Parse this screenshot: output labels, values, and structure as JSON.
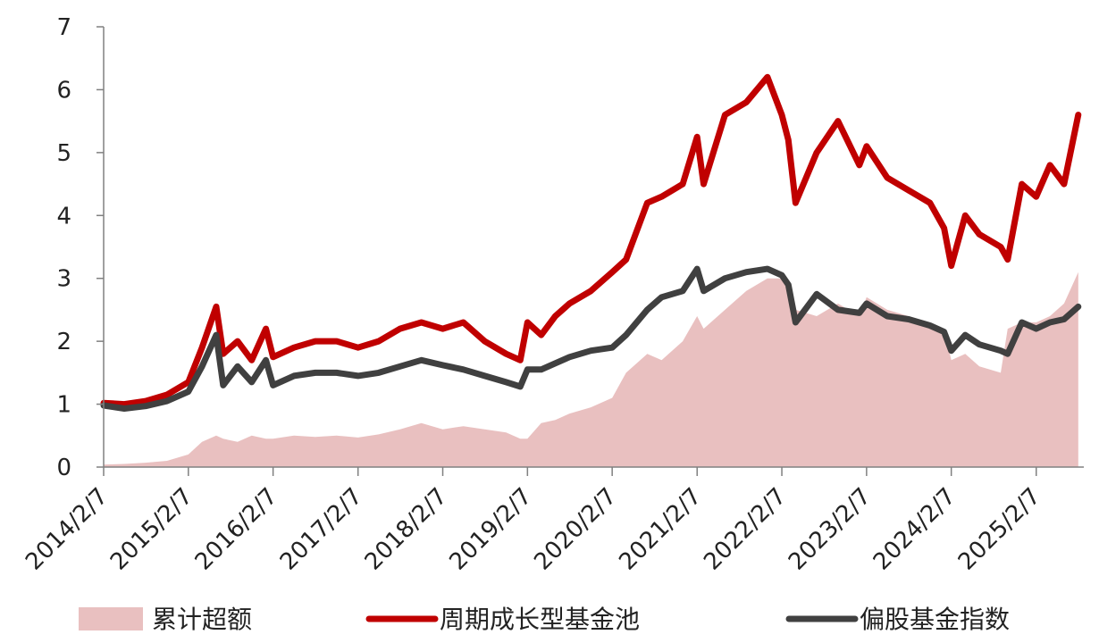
{
  "chart_data": {
    "type": "line",
    "title": "",
    "xlabel": "",
    "ylabel": "",
    "ylim": [
      0,
      7
    ],
    "yticks": [
      "0",
      "1",
      "2",
      "3",
      "4",
      "5",
      "6",
      "7"
    ],
    "xticks": [
      "2014/2/7",
      "2015/2/7",
      "2016/2/7",
      "2017/2/7",
      "2018/2/7",
      "2019/2/7",
      "2020/2/7",
      "2021/2/7",
      "2022/2/7",
      "2023/2/7",
      "2024/2/7",
      "2025/2/7"
    ],
    "x": [
      "2014-02",
      "2014-05",
      "2014-08",
      "2014-11",
      "2015-02",
      "2015-04",
      "2015-06",
      "2015-07",
      "2015-09",
      "2015-11",
      "2016-01",
      "2016-02",
      "2016-05",
      "2016-08",
      "2016-11",
      "2017-02",
      "2017-05",
      "2017-08",
      "2017-11",
      "2018-02",
      "2018-05",
      "2018-08",
      "2018-11",
      "2019-01",
      "2019-02",
      "2019-04",
      "2019-06",
      "2019-08",
      "2019-11",
      "2020-02",
      "2020-04",
      "2020-07",
      "2020-09",
      "2020-12",
      "2021-02",
      "2021-03",
      "2021-06",
      "2021-09",
      "2021-12",
      "2022-02",
      "2022-03",
      "2022-04",
      "2022-07",
      "2022-10",
      "2023-01",
      "2023-02",
      "2023-05",
      "2023-08",
      "2023-11",
      "2024-01",
      "2024-02",
      "2024-04",
      "2024-06",
      "2024-09",
      "2024-10",
      "2024-12",
      "2025-02",
      "2025-04",
      "2025-06",
      "2025-08"
    ],
    "series": [
      {
        "name": "累计超额",
        "type": "area",
        "color": "#e9c0c0",
        "values": [
          0.04,
          0.05,
          0.07,
          0.1,
          0.2,
          0.4,
          0.5,
          0.45,
          0.4,
          0.5,
          0.45,
          0.45,
          0.5,
          0.48,
          0.5,
          0.47,
          0.52,
          0.6,
          0.7,
          0.6,
          0.65,
          0.6,
          0.55,
          0.45,
          0.45,
          0.7,
          0.75,
          0.85,
          0.95,
          1.1,
          1.5,
          1.8,
          1.7,
          2.0,
          2.4,
          2.2,
          2.5,
          2.8,
          3.0,
          3.0,
          2.8,
          2.5,
          2.4,
          2.6,
          2.4,
          2.7,
          2.5,
          2.4,
          2.3,
          2.2,
          1.7,
          1.8,
          1.6,
          1.5,
          2.2,
          2.3,
          2.3,
          2.4,
          2.6,
          3.1
        ]
      },
      {
        "name": "周期成长型基金池",
        "type": "line",
        "color": "#c00000",
        "values": [
          1.02,
          1.0,
          1.05,
          1.15,
          1.35,
          1.9,
          2.55,
          1.8,
          2.0,
          1.7,
          2.2,
          1.75,
          1.9,
          2.0,
          2.0,
          1.9,
          2.0,
          2.2,
          2.3,
          2.2,
          2.3,
          2.0,
          1.8,
          1.7,
          2.3,
          2.1,
          2.4,
          2.6,
          2.8,
          3.1,
          3.3,
          4.2,
          4.3,
          4.5,
          5.25,
          4.5,
          5.6,
          5.8,
          6.2,
          5.6,
          5.2,
          4.2,
          5.0,
          5.5,
          4.8,
          5.1,
          4.6,
          4.4,
          4.2,
          3.8,
          3.2,
          4.0,
          3.7,
          3.5,
          3.3,
          4.5,
          4.3,
          4.8,
          4.5,
          5.6
        ]
      },
      {
        "name": "偏股基金指数",
        "type": "line",
        "color": "#404040",
        "values": [
          0.98,
          0.93,
          0.97,
          1.05,
          1.2,
          1.6,
          2.1,
          1.3,
          1.6,
          1.35,
          1.7,
          1.3,
          1.45,
          1.5,
          1.5,
          1.45,
          1.5,
          1.6,
          1.7,
          1.62,
          1.55,
          1.45,
          1.35,
          1.28,
          1.55,
          1.55,
          1.65,
          1.75,
          1.85,
          1.9,
          2.1,
          2.5,
          2.7,
          2.8,
          3.15,
          2.8,
          3.0,
          3.1,
          3.15,
          3.05,
          2.9,
          2.3,
          2.75,
          2.5,
          2.45,
          2.6,
          2.4,
          2.35,
          2.25,
          2.15,
          1.85,
          2.1,
          1.95,
          1.85,
          1.8,
          2.3,
          2.2,
          2.3,
          2.35,
          2.55
        ]
      }
    ],
    "legend_position": "bottom",
    "grid": false
  }
}
